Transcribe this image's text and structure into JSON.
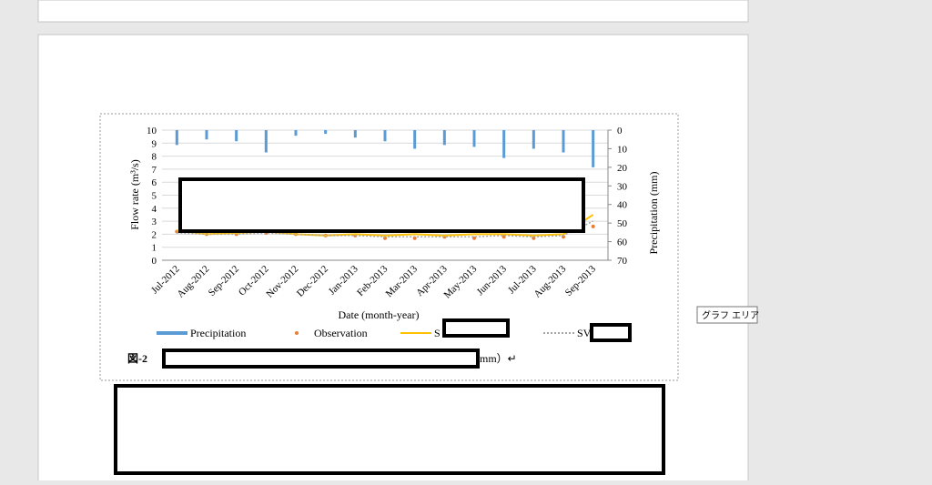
{
  "chart_data": {
    "type": "combo",
    "categories": [
      "Jul-2012",
      "Aug-2012",
      "Sep-2012",
      "Oct-2012",
      "Nov-2012",
      "Dec-2012",
      "Jan-2013",
      "Feb-2013",
      "Mar-2013",
      "Apr-2013",
      "May-2013",
      "Jun-2013",
      "Jul-2013",
      "Aug-2013",
      "Sep-2013"
    ],
    "x_label": "Date (month-year)",
    "y_label": "Flow rate (m³/s)",
    "y2_label": "Precipitation (mm)",
    "ylim": [
      0,
      10
    ],
    "yticks": [
      0,
      1,
      2,
      3,
      4,
      5,
      6,
      7,
      8,
      9,
      10
    ],
    "y2lim": [
      0,
      70
    ],
    "y2ticks": [
      0,
      10,
      20,
      30,
      40,
      50,
      60,
      70
    ],
    "y2_inverted": true,
    "grid": true,
    "series": [
      {
        "name": "Precipitation",
        "color": "#5b9bd5",
        "axis": "y2",
        "style": "bar",
        "values": [
          8,
          5,
          6,
          12,
          3,
          2,
          4,
          6,
          10,
          8,
          9,
          15,
          10,
          12,
          20
        ]
      },
      {
        "name": "Observation",
        "color": "#ed7d31",
        "style": "dot",
        "values": [
          2.2,
          2.0,
          2.0,
          2.1,
          2.0,
          1.9,
          1.9,
          1.7,
          1.7,
          1.8,
          1.7,
          1.8,
          1.7,
          1.8,
          2.6
        ]
      },
      {
        "name": "S",
        "color": "#ffc000",
        "style": "line",
        "values": [
          2.3,
          2.0,
          2.1,
          2.2,
          2.0,
          1.9,
          2.0,
          1.9,
          2.0,
          1.9,
          2.0,
          2.0,
          1.9,
          2.0,
          3.5
        ]
      },
      {
        "name": "SV",
        "color": "#a5a5a5",
        "style": "dotted",
        "values": [
          2.1,
          2.0,
          2.0,
          2.1,
          2.0,
          1.9,
          1.9,
          1.8,
          1.8,
          1.8,
          1.8,
          1.9,
          1.8,
          1.9,
          3.0
        ]
      }
    ]
  },
  "caption": {
    "label": "図-2",
    "tail": "mm）↵"
  },
  "tooltip": "グラフ エリア"
}
